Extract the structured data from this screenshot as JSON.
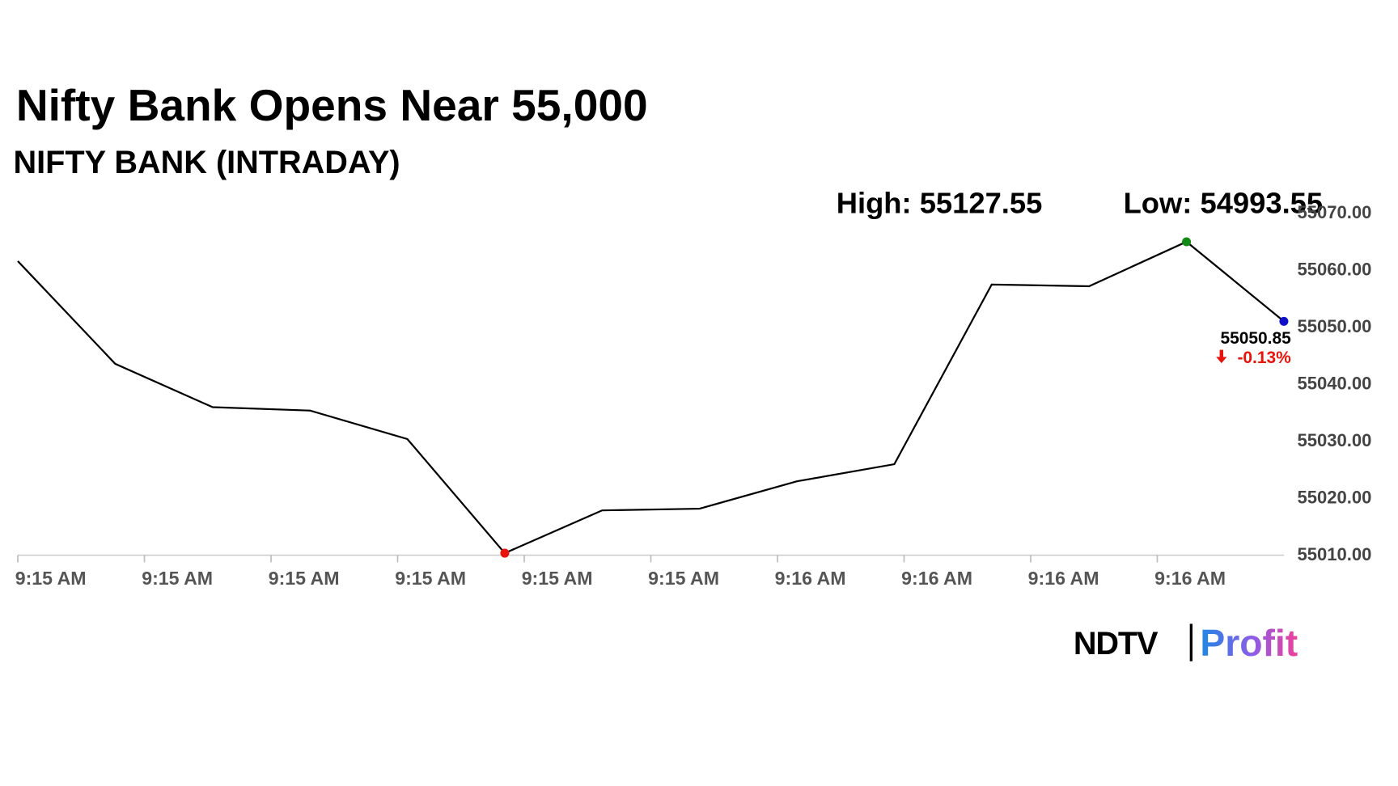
{
  "chart_data": {
    "type": "line",
    "title": "Nifty Bank Opens Near 55,000",
    "subtitle": "NIFTY BANK (INTRADAY)",
    "high_label": "High: 55127.55",
    "low_label": "Low: 54993.55",
    "xtick_labels": [
      "9:15 AM",
      "9:15 AM",
      "9:15 AM",
      "9:15 AM",
      "9:15 AM",
      "9:15 AM",
      "9:16 AM",
      "9:16 AM",
      "9:16 AM",
      "9:16 AM"
    ],
    "series": [
      {
        "name": "NIFTY BANK",
        "color": "#000000",
        "values": [
          55061.4,
          55043.4,
          55035.8,
          55035.2,
          55030.2,
          55010.2,
          55017.7,
          55018.0,
          55022.8,
          55025.8,
          55057.3,
          55057.0,
          55064.8,
          55050.85
        ]
      }
    ],
    "high_color": "#138a13",
    "low_color": "#e8140c",
    "last_color": "#1010c8",
    "change_label": "-0.13%",
    "change_color": "#e8140c",
    "ylim": [
      55010,
      55070
    ],
    "yticks": [
      {
        "value": 55010,
        "label": "55010.00"
      },
      {
        "value": 55020,
        "label": "55020.00"
      },
      {
        "value": 55030,
        "label": "55030.00"
      },
      {
        "value": 55040,
        "label": "55040.00"
      },
      {
        "value": 55050,
        "label": "55050.00"
      },
      {
        "value": 55060,
        "label": "55060.00"
      },
      {
        "value": 55070,
        "label": "55070.00"
      }
    ],
    "logo": {
      "left": "NDTV",
      "right": "Profit"
    }
  }
}
